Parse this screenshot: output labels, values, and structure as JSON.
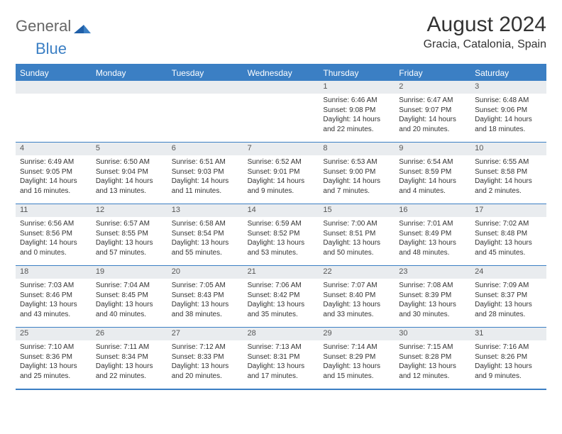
{
  "brand": {
    "part1": "General",
    "part2": "Blue"
  },
  "title": "August 2024",
  "location": "Gracia, Catalonia, Spain",
  "colors": {
    "accent": "#3b7fc4",
    "header_bg": "#e9ecef",
    "text": "#333333"
  },
  "daysOfWeek": [
    "Sunday",
    "Monday",
    "Tuesday",
    "Wednesday",
    "Thursday",
    "Friday",
    "Saturday"
  ],
  "weeks": [
    [
      {
        "n": "",
        "sr": "",
        "ss": "",
        "d1": "",
        "d2": ""
      },
      {
        "n": "",
        "sr": "",
        "ss": "",
        "d1": "",
        "d2": ""
      },
      {
        "n": "",
        "sr": "",
        "ss": "",
        "d1": "",
        "d2": ""
      },
      {
        "n": "",
        "sr": "",
        "ss": "",
        "d1": "",
        "d2": ""
      },
      {
        "n": "1",
        "sr": "Sunrise: 6:46 AM",
        "ss": "Sunset: 9:08 PM",
        "d1": "Daylight: 14 hours",
        "d2": "and 22 minutes."
      },
      {
        "n": "2",
        "sr": "Sunrise: 6:47 AM",
        "ss": "Sunset: 9:07 PM",
        "d1": "Daylight: 14 hours",
        "d2": "and 20 minutes."
      },
      {
        "n": "3",
        "sr": "Sunrise: 6:48 AM",
        "ss": "Sunset: 9:06 PM",
        "d1": "Daylight: 14 hours",
        "d2": "and 18 minutes."
      }
    ],
    [
      {
        "n": "4",
        "sr": "Sunrise: 6:49 AM",
        "ss": "Sunset: 9:05 PM",
        "d1": "Daylight: 14 hours",
        "d2": "and 16 minutes."
      },
      {
        "n": "5",
        "sr": "Sunrise: 6:50 AM",
        "ss": "Sunset: 9:04 PM",
        "d1": "Daylight: 14 hours",
        "d2": "and 13 minutes."
      },
      {
        "n": "6",
        "sr": "Sunrise: 6:51 AM",
        "ss": "Sunset: 9:03 PM",
        "d1": "Daylight: 14 hours",
        "d2": "and 11 minutes."
      },
      {
        "n": "7",
        "sr": "Sunrise: 6:52 AM",
        "ss": "Sunset: 9:01 PM",
        "d1": "Daylight: 14 hours",
        "d2": "and 9 minutes."
      },
      {
        "n": "8",
        "sr": "Sunrise: 6:53 AM",
        "ss": "Sunset: 9:00 PM",
        "d1": "Daylight: 14 hours",
        "d2": "and 7 minutes."
      },
      {
        "n": "9",
        "sr": "Sunrise: 6:54 AM",
        "ss": "Sunset: 8:59 PM",
        "d1": "Daylight: 14 hours",
        "d2": "and 4 minutes."
      },
      {
        "n": "10",
        "sr": "Sunrise: 6:55 AM",
        "ss": "Sunset: 8:58 PM",
        "d1": "Daylight: 14 hours",
        "d2": "and 2 minutes."
      }
    ],
    [
      {
        "n": "11",
        "sr": "Sunrise: 6:56 AM",
        "ss": "Sunset: 8:56 PM",
        "d1": "Daylight: 14 hours",
        "d2": "and 0 minutes."
      },
      {
        "n": "12",
        "sr": "Sunrise: 6:57 AM",
        "ss": "Sunset: 8:55 PM",
        "d1": "Daylight: 13 hours",
        "d2": "and 57 minutes."
      },
      {
        "n": "13",
        "sr": "Sunrise: 6:58 AM",
        "ss": "Sunset: 8:54 PM",
        "d1": "Daylight: 13 hours",
        "d2": "and 55 minutes."
      },
      {
        "n": "14",
        "sr": "Sunrise: 6:59 AM",
        "ss": "Sunset: 8:52 PM",
        "d1": "Daylight: 13 hours",
        "d2": "and 53 minutes."
      },
      {
        "n": "15",
        "sr": "Sunrise: 7:00 AM",
        "ss": "Sunset: 8:51 PM",
        "d1": "Daylight: 13 hours",
        "d2": "and 50 minutes."
      },
      {
        "n": "16",
        "sr": "Sunrise: 7:01 AM",
        "ss": "Sunset: 8:49 PM",
        "d1": "Daylight: 13 hours",
        "d2": "and 48 minutes."
      },
      {
        "n": "17",
        "sr": "Sunrise: 7:02 AM",
        "ss": "Sunset: 8:48 PM",
        "d1": "Daylight: 13 hours",
        "d2": "and 45 minutes."
      }
    ],
    [
      {
        "n": "18",
        "sr": "Sunrise: 7:03 AM",
        "ss": "Sunset: 8:46 PM",
        "d1": "Daylight: 13 hours",
        "d2": "and 43 minutes."
      },
      {
        "n": "19",
        "sr": "Sunrise: 7:04 AM",
        "ss": "Sunset: 8:45 PM",
        "d1": "Daylight: 13 hours",
        "d2": "and 40 minutes."
      },
      {
        "n": "20",
        "sr": "Sunrise: 7:05 AM",
        "ss": "Sunset: 8:43 PM",
        "d1": "Daylight: 13 hours",
        "d2": "and 38 minutes."
      },
      {
        "n": "21",
        "sr": "Sunrise: 7:06 AM",
        "ss": "Sunset: 8:42 PM",
        "d1": "Daylight: 13 hours",
        "d2": "and 35 minutes."
      },
      {
        "n": "22",
        "sr": "Sunrise: 7:07 AM",
        "ss": "Sunset: 8:40 PM",
        "d1": "Daylight: 13 hours",
        "d2": "and 33 minutes."
      },
      {
        "n": "23",
        "sr": "Sunrise: 7:08 AM",
        "ss": "Sunset: 8:39 PM",
        "d1": "Daylight: 13 hours",
        "d2": "and 30 minutes."
      },
      {
        "n": "24",
        "sr": "Sunrise: 7:09 AM",
        "ss": "Sunset: 8:37 PM",
        "d1": "Daylight: 13 hours",
        "d2": "and 28 minutes."
      }
    ],
    [
      {
        "n": "25",
        "sr": "Sunrise: 7:10 AM",
        "ss": "Sunset: 8:36 PM",
        "d1": "Daylight: 13 hours",
        "d2": "and 25 minutes."
      },
      {
        "n": "26",
        "sr": "Sunrise: 7:11 AM",
        "ss": "Sunset: 8:34 PM",
        "d1": "Daylight: 13 hours",
        "d2": "and 22 minutes."
      },
      {
        "n": "27",
        "sr": "Sunrise: 7:12 AM",
        "ss": "Sunset: 8:33 PM",
        "d1": "Daylight: 13 hours",
        "d2": "and 20 minutes."
      },
      {
        "n": "28",
        "sr": "Sunrise: 7:13 AM",
        "ss": "Sunset: 8:31 PM",
        "d1": "Daylight: 13 hours",
        "d2": "and 17 minutes."
      },
      {
        "n": "29",
        "sr": "Sunrise: 7:14 AM",
        "ss": "Sunset: 8:29 PM",
        "d1": "Daylight: 13 hours",
        "d2": "and 15 minutes."
      },
      {
        "n": "30",
        "sr": "Sunrise: 7:15 AM",
        "ss": "Sunset: 8:28 PM",
        "d1": "Daylight: 13 hours",
        "d2": "and 12 minutes."
      },
      {
        "n": "31",
        "sr": "Sunrise: 7:16 AM",
        "ss": "Sunset: 8:26 PM",
        "d1": "Daylight: 13 hours",
        "d2": "and 9 minutes."
      }
    ]
  ]
}
